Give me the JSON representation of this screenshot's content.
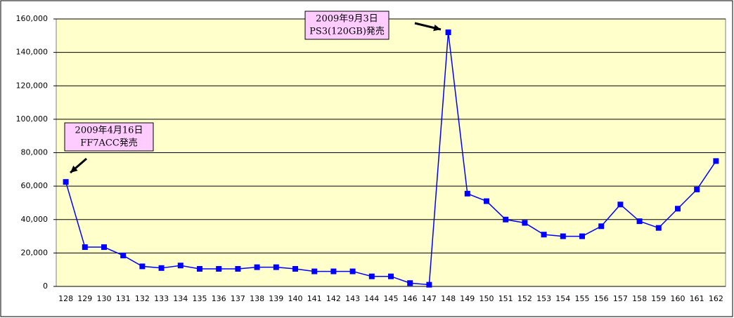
{
  "chart_data": {
    "type": "line",
    "categories": [
      "128",
      "129",
      "130",
      "131",
      "132",
      "133",
      "134",
      "135",
      "136",
      "137",
      "138",
      "139",
      "140",
      "141",
      "142",
      "143",
      "144",
      "145",
      "146",
      "147",
      "148",
      "149",
      "150",
      "151",
      "152",
      "153",
      "154",
      "155",
      "156",
      "157",
      "158",
      "159",
      "160",
      "161",
      "162"
    ],
    "series": [
      {
        "color": "#0000ff",
        "values": [
          62500,
          23500,
          23500,
          18500,
          12000,
          11000,
          12500,
          10500,
          10500,
          10500,
          11500,
          11500,
          10500,
          9000,
          9000,
          9000,
          6000,
          6000,
          2000,
          1000,
          152000,
          55500,
          51000,
          40000,
          38000,
          31000,
          30000,
          30000,
          36000,
          49000,
          39000,
          35000,
          46500,
          58000,
          75000
        ]
      }
    ],
    "ylim": [
      0,
      160000
    ],
    "yticks": [
      0,
      {
        "value": 20000,
        "label": "20,000"
      },
      {
        "value": 40000,
        "label": "40,000"
      },
      {
        "value": 60000,
        "label": "60,000"
      },
      {
        "value": 80000,
        "label": "80,000"
      },
      {
        "value": 100000,
        "label": "100,000"
      },
      {
        "value": 120000,
        "label": "120,000"
      },
      {
        "value": 140000,
        "label": "140,000"
      },
      {
        "value": 160000,
        "label": "160,000"
      }
    ],
    "grid": true,
    "background": "#ffffcc",
    "annotations": [
      {
        "lines": [
          "2009年4月16日",
          "FF7ACC発売"
        ]
      },
      {
        "lines": [
          "2009年9月3日",
          "PS3(120GB)発売"
        ]
      }
    ]
  }
}
